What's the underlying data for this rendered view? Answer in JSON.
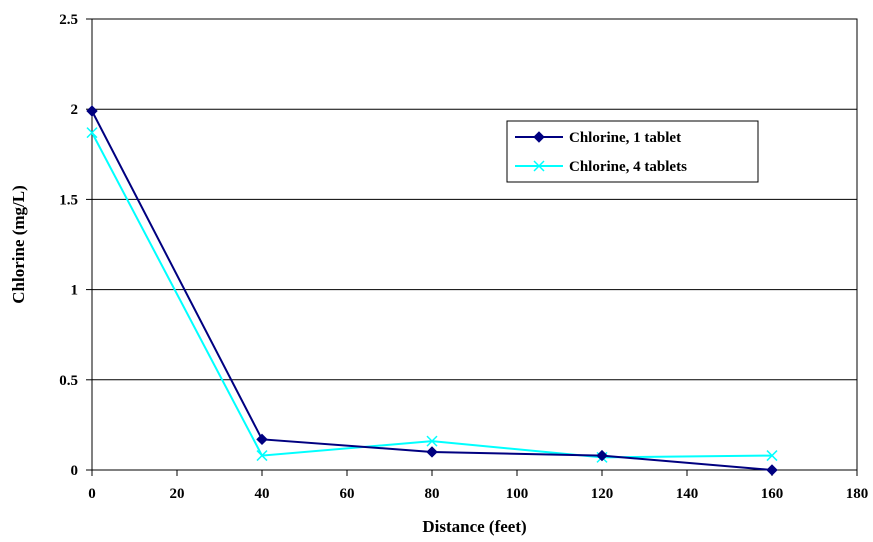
{
  "chart_data": {
    "type": "line",
    "title": "",
    "xlabel": "Distance (feet)",
    "ylabel": "Chlorine (mg/L)",
    "xlim": [
      0,
      180
    ],
    "ylim": [
      0,
      2.5
    ],
    "x_ticks": [
      "0",
      "20",
      "40",
      "60",
      "80",
      "100",
      "120",
      "140",
      "160",
      "180"
    ],
    "y_ticks": [
      "0",
      "0.5",
      "1",
      "1.5",
      "2",
      "2.5"
    ],
    "grid": "horizontal",
    "legend_position": "right-upper",
    "series": [
      {
        "name": "Chlorine, 1 tablet",
        "color": "#000080",
        "marker": "diamond",
        "x": [
          0,
          40,
          80,
          120,
          160
        ],
        "y": [
          1.99,
          0.17,
          0.1,
          0.08,
          0.0
        ]
      },
      {
        "name": "Chlorine, 4 tablets",
        "color": "#00FFFF",
        "marker": "x",
        "x": [
          0,
          40,
          80,
          120,
          160
        ],
        "y": [
          1.87,
          0.08,
          0.16,
          0.07,
          0.08
        ]
      }
    ]
  }
}
